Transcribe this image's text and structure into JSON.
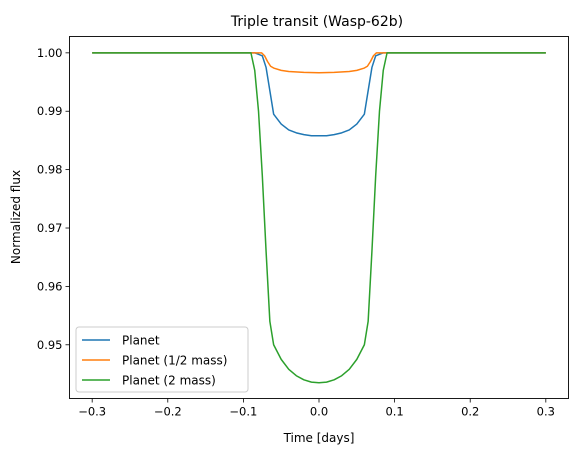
{
  "chart_data": {
    "type": "line",
    "title": "Triple transit (Wasp-62b)",
    "xlabel": "Time [days]",
    "ylabel": "Normalized flux",
    "xlim": [
      -0.33,
      0.33
    ],
    "ylim": [
      0.9408,
      1.0028
    ],
    "xticks": [
      -0.3,
      -0.2,
      -0.1,
      0.0,
      0.1,
      0.2,
      0.3
    ],
    "xtick_labels": [
      "−0.3",
      "−0.2",
      "−0.1",
      "0.0",
      "0.1",
      "0.2",
      "0.3"
    ],
    "yticks": [
      0.95,
      0.96,
      0.97,
      0.98,
      0.99,
      1.0
    ],
    "ytick_labels": [
      "0.95",
      "0.96",
      "0.97",
      "0.98",
      "0.99",
      "1.00"
    ],
    "grid": false,
    "legend_position": "lower-left",
    "series": [
      {
        "name": "Planet",
        "color": "#1f77b4",
        "x": [
          -0.3,
          -0.085,
          -0.075,
          -0.07,
          -0.065,
          -0.06,
          -0.05,
          -0.04,
          -0.03,
          -0.02,
          -0.01,
          0.0,
          0.01,
          0.02,
          0.03,
          0.04,
          0.05,
          0.06,
          0.065,
          0.07,
          0.075,
          0.085,
          0.3
        ],
        "y": [
          1.0,
          1.0,
          0.9995,
          0.9975,
          0.9935,
          0.9895,
          0.9878,
          0.9868,
          0.9863,
          0.986,
          0.9858,
          0.9858,
          0.9858,
          0.986,
          0.9863,
          0.9868,
          0.9878,
          0.9895,
          0.9935,
          0.9975,
          0.9995,
          1.0,
          1.0
        ]
      },
      {
        "name": "Planet (1/2 mass)",
        "color": "#ff7f0e",
        "x": [
          -0.3,
          -0.076,
          -0.072,
          -0.068,
          -0.064,
          -0.06,
          -0.05,
          -0.04,
          -0.02,
          0.0,
          0.02,
          0.04,
          0.05,
          0.06,
          0.064,
          0.068,
          0.072,
          0.076,
          0.3
        ],
        "y": [
          1.0,
          1.0,
          0.9995,
          0.9985,
          0.9977,
          0.9974,
          0.997,
          0.9968,
          0.99665,
          0.9966,
          0.99665,
          0.9968,
          0.997,
          0.9974,
          0.9977,
          0.9985,
          0.9995,
          1.0,
          1.0
        ]
      },
      {
        "name": "Planet (2 mass)",
        "color": "#2ca02c",
        "x": [
          -0.3,
          -0.09,
          -0.085,
          -0.08,
          -0.075,
          -0.07,
          -0.065,
          -0.06,
          -0.05,
          -0.04,
          -0.03,
          -0.02,
          -0.01,
          0.0,
          0.01,
          0.02,
          0.03,
          0.04,
          0.05,
          0.06,
          0.065,
          0.07,
          0.075,
          0.08,
          0.085,
          0.09,
          0.3
        ],
        "y": [
          1.0,
          1.0,
          0.997,
          0.99,
          0.979,
          0.966,
          0.954,
          0.95,
          0.9475,
          0.9458,
          0.9447,
          0.944,
          0.9436,
          0.9435,
          0.9436,
          0.944,
          0.9447,
          0.9458,
          0.9475,
          0.95,
          0.954,
          0.966,
          0.979,
          0.99,
          0.997,
          1.0,
          1.0
        ]
      }
    ]
  }
}
